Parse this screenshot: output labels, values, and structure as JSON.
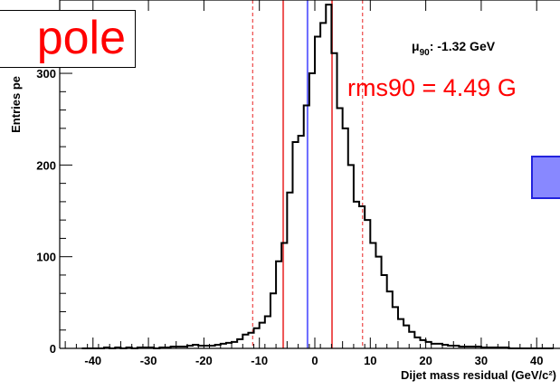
{
  "overlays": {
    "title_fragment": "pole",
    "rms_text": "rms90 = 4.49 G"
  },
  "stat_box": {
    "mu_symbol": "μ",
    "mu_subscript": "90",
    "mu_value": ": -1.32 GeV"
  },
  "colors": {
    "histogram": "#000000",
    "mean_line": "#6a6aff",
    "rms_lines": "#ee5555",
    "text_overlay": "#ff0000",
    "legend_fill": "#8888ff",
    "legend_border": "#2222dd"
  },
  "chart_data": {
    "type": "histogram",
    "title": "",
    "xlabel": "Dijet mass residual (GeV/c²)",
    "ylabel": "Entries pe",
    "xlim": [
      -46,
      46
    ],
    "ylim": [
      0,
      380
    ],
    "x_ticks": [
      -40,
      -30,
      -20,
      -10,
      0,
      10,
      20,
      30,
      40
    ],
    "y_ticks": [
      0,
      100,
      200,
      300
    ],
    "grid": false,
    "bin_width": 1,
    "bin_start": -42,
    "counts": [
      0,
      0,
      0,
      0,
      1,
      0,
      1,
      0,
      1,
      0,
      1,
      1,
      1,
      0,
      1,
      1,
      2,
      2,
      2,
      3,
      4,
      3,
      3,
      3,
      4,
      5,
      6,
      7,
      10,
      15,
      17,
      22,
      28,
      35,
      60,
      95,
      115,
      170,
      225,
      232,
      265,
      300,
      340,
      355,
      375,
      322,
      262,
      240,
      200,
      160,
      155,
      140,
      115,
      100,
      80,
      62,
      45,
      32,
      25,
      18,
      12,
      9,
      7,
      5,
      5,
      4,
      3,
      3,
      2,
      2,
      2,
      2,
      1,
      1,
      1,
      1,
      1,
      0,
      0,
      0,
      0,
      0,
      0,
      0,
      0
    ],
    "vertical_lines": [
      {
        "x": -1.32,
        "style": "solid",
        "color": "#6a6aff"
      },
      {
        "x": -5.7,
        "style": "solid",
        "color": "#ee5555"
      },
      {
        "x": 3.1,
        "style": "solid",
        "color": "#ee5555"
      },
      {
        "x": -11.2,
        "style": "dashed",
        "color": "#ee5555"
      },
      {
        "x": 8.6,
        "style": "dashed",
        "color": "#ee5555"
      }
    ]
  }
}
